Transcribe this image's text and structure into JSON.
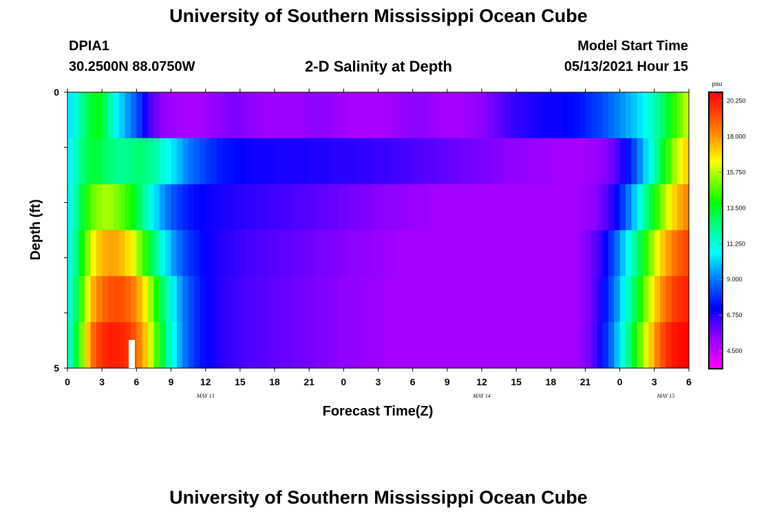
{
  "title": "University of Southern Mississippi Ocean Cube",
  "footer_title": "University of Southern Mississippi Ocean Cube",
  "station": "DPIA1",
  "location": "30.2500N  88.0750W",
  "plot_title": "2-D Salinity at Depth",
  "model_start_label": "Model Start Time",
  "model_start_value": "05/13/2021 Hour 15",
  "chart_data": {
    "type": "heatmap",
    "title": "2-D Salinity at Depth",
    "xlabel": "Forecast Time(Z)",
    "ylabel": "Depth (ft)",
    "units": "psu",
    "x_hours_range": [
      0,
      54
    ],
    "y_range": [
      0,
      5
    ],
    "y_tick_labels": [
      "0",
      "5"
    ],
    "x_tick_labels": [
      "0",
      "3",
      "6",
      "9",
      "12",
      "15",
      "18",
      "21",
      "0",
      "3",
      "6",
      "9",
      "12",
      "15",
      "18",
      "21",
      "0",
      "3",
      "6"
    ],
    "date_labels": [
      {
        "text": "MAY 13",
        "hour": 12
      },
      {
        "text": "MAY 14",
        "hour": 36
      },
      {
        "text": "MAY 15",
        "hour": 52
      }
    ],
    "colorbar": {
      "label": "psu",
      "min": 3.375,
      "max": 20.8,
      "tick_values": [
        "20.250",
        "18.000",
        "15.750",
        "13.500",
        "11.250",
        "9.000",
        "6.750",
        "4.500"
      ]
    },
    "salinity_psu_by_depth_row": [
      [
        10.5,
        11.3,
        12.1,
        12.9,
        13.4,
        13.6,
        12.9,
        11.8,
        10.6,
        10.0,
        9.4,
        8.8,
        8.0,
        7.0,
        6.2,
        5.8,
        5.4,
        5.2,
        5.1,
        5.0,
        4.9,
        4.9,
        4.9,
        5.0,
        5.1,
        5.3,
        5.4,
        5.5,
        5.6,
        5.6,
        5.5,
        5.4,
        5.3,
        5.2,
        5.1,
        5.1,
        5.1,
        5.1,
        5.1,
        5.1,
        5.2,
        5.3,
        5.4,
        5.4,
        5.4,
        5.3,
        5.2,
        5.1,
        5.0,
        4.9,
        4.9,
        4.9,
        4.9,
        4.9,
        4.9,
        5.0,
        5.1,
        5.2,
        5.3,
        5.4,
        5.4,
        5.4,
        5.3,
        5.2,
        5.1,
        5.0,
        5.0,
        5.0,
        5.0,
        5.1,
        5.2,
        5.3,
        5.5,
        5.7,
        5.9,
        6.1,
        6.3,
        6.5,
        6.6,
        6.7,
        6.8,
        6.9,
        7.0,
        7.1,
        7.1,
        7.1,
        7.2,
        7.3,
        7.4,
        7.6,
        7.8,
        8.0,
        8.2,
        8.5,
        8.8,
        9.1,
        9.4,
        9.7,
        10.0,
        10.4,
        10.9,
        11.4,
        12.0,
        12.7,
        13.5,
        14.3,
        15.1,
        15.8
      ],
      [
        10.8,
        11.6,
        12.4,
        13.0,
        13.2,
        13.1,
        12.8,
        12.5,
        12.3,
        12.2,
        12.3,
        12.5,
        12.6,
        12.5,
        12.2,
        11.8,
        11.3,
        10.8,
        10.3,
        9.8,
        9.3,
        8.9,
        8.6,
        8.3,
        8.0,
        7.8,
        7.6,
        7.5,
        7.4,
        7.3,
        7.2,
        7.1,
        7.0,
        7.0,
        7.0,
        7.0,
        6.9,
        6.9,
        6.9,
        6.9,
        6.9,
        6.9,
        6.8,
        6.8,
        6.8,
        6.8,
        6.7,
        6.7,
        6.7,
        6.7,
        6.6,
        6.6,
        6.6,
        6.5,
        6.5,
        6.5,
        6.4,
        6.4,
        6.3,
        6.3,
        6.2,
        6.2,
        6.1,
        6.1,
        6.0,
        6.0,
        5.9,
        5.9,
        5.8,
        5.8,
        5.7,
        5.7,
        5.6,
        5.6,
        5.5,
        5.5,
        5.4,
        5.4,
        5.3,
        5.3,
        5.2,
        5.2,
        5.1,
        5.1,
        5.0,
        5.0,
        5.0,
        5.0,
        5.0,
        5.0,
        5.1,
        5.2,
        5.3,
        5.5,
        5.8,
        6.2,
        6.8,
        7.5,
        8.3,
        9.2,
        10.2,
        11.2,
        12.3,
        13.4,
        14.5,
        15.5,
        16.3,
        17.0
      ],
      [
        11.0,
        12.0,
        13.2,
        14.2,
        15.0,
        15.4,
        15.6,
        15.5,
        15.2,
        14.8,
        14.3,
        13.6,
        12.8,
        11.9,
        11.0,
        10.2,
        9.5,
        8.9,
        8.4,
        8.0,
        7.7,
        7.5,
        7.3,
        7.2,
        7.1,
        7.0,
        6.9,
        6.8,
        6.8,
        6.7,
        6.7,
        6.6,
        6.6,
        6.5,
        6.5,
        6.4,
        6.4,
        6.3,
        6.3,
        6.2,
        6.2,
        6.1,
        6.1,
        6.0,
        6.0,
        5.9,
        5.9,
        5.8,
        5.8,
        5.7,
        5.7,
        5.6,
        5.6,
        5.5,
        5.5,
        5.4,
        5.4,
        5.3,
        5.3,
        5.2,
        5.2,
        5.1,
        5.1,
        5.0,
        5.0,
        5.0,
        5.0,
        5.0,
        5.0,
        5.0,
        5.0,
        5.0,
        5.0,
        5.0,
        5.0,
        5.0,
        5.0,
        5.0,
        5.0,
        5.0,
        5.0,
        5.0,
        5.0,
        5.0,
        5.0,
        5.0,
        5.0,
        5.0,
        5.0,
        5.1,
        5.2,
        5.4,
        5.7,
        6.1,
        6.6,
        7.3,
        8.1,
        9.0,
        10.0,
        11.1,
        12.2,
        13.3,
        14.4,
        15.4,
        16.3,
        17.1,
        17.7,
        18.2
      ],
      [
        11.2,
        12.4,
        13.8,
        15.2,
        16.4,
        17.2,
        17.6,
        17.8,
        17.7,
        17.4,
        16.9,
        16.2,
        15.3,
        14.3,
        13.2,
        12.1,
        11.1,
        10.2,
        9.4,
        8.8,
        8.3,
        7.9,
        7.6,
        7.3,
        7.1,
        6.9,
        6.8,
        6.7,
        6.6,
        6.5,
        6.4,
        6.3,
        6.3,
        6.2,
        6.2,
        6.1,
        6.1,
        6.0,
        6.0,
        5.9,
        5.9,
        5.8,
        5.8,
        5.7,
        5.7,
        5.6,
        5.6,
        5.5,
        5.5,
        5.4,
        5.4,
        5.3,
        5.3,
        5.2,
        5.2,
        5.1,
        5.1,
        5.0,
        5.0,
        5.0,
        5.0,
        5.0,
        5.0,
        5.0,
        5.0,
        5.0,
        5.0,
        5.0,
        5.0,
        5.0,
        5.0,
        5.0,
        5.0,
        5.0,
        5.0,
        5.0,
        5.0,
        5.0,
        5.0,
        5.0,
        5.0,
        5.0,
        5.0,
        5.0,
        5.0,
        5.0,
        5.0,
        5.0,
        5.1,
        5.3,
        5.6,
        6.0,
        6.5,
        7.2,
        8.0,
        8.9,
        9.9,
        10.9,
        12.0,
        13.1,
        14.2,
        15.3,
        16.3,
        17.2,
        18.0,
        18.6,
        19.1,
        19.4
      ],
      [
        11.4,
        12.8,
        14.5,
        16.2,
        17.6,
        18.4,
        18.9,
        19.2,
        19.3,
        19.2,
        18.9,
        18.4,
        17.6,
        16.6,
        15.4,
        14.1,
        12.8,
        11.6,
        10.5,
        9.6,
        8.9,
        8.3,
        7.8,
        7.4,
        7.1,
        6.9,
        6.7,
        6.6,
        6.5,
        6.4,
        6.3,
        6.2,
        6.2,
        6.1,
        6.1,
        6.0,
        6.0,
        5.9,
        5.9,
        5.8,
        5.8,
        5.7,
        5.7,
        5.6,
        5.6,
        5.5,
        5.5,
        5.4,
        5.4,
        5.3,
        5.3,
        5.2,
        5.2,
        5.1,
        5.1,
        5.0,
        5.0,
        5.0,
        5.0,
        5.0,
        5.0,
        5.0,
        5.0,
        5.0,
        5.0,
        5.0,
        5.0,
        5.0,
        5.0,
        5.0,
        5.0,
        5.0,
        5.0,
        5.0,
        5.0,
        5.0,
        5.0,
        5.0,
        5.0,
        5.0,
        5.0,
        5.0,
        5.0,
        5.0,
        5.0,
        5.0,
        5.0,
        5.0,
        5.1,
        5.3,
        5.6,
        6.1,
        6.7,
        7.5,
        8.4,
        9.4,
        10.5,
        11.6,
        12.8,
        14.0,
        15.2,
        16.3,
        17.4,
        18.3,
        19.0,
        19.6,
        19.9,
        20.1
      ],
      [
        11.6,
        13.2,
        15.2,
        17.2,
        18.8,
        19.6,
        20.0,
        20.2,
        20.2,
        20.1,
        19.8,
        19.2,
        18.4,
        17.3,
        16.0,
        14.6,
        13.2,
        11.9,
        10.7,
        9.7,
        8.9,
        8.3,
        7.8,
        7.4,
        7.1,
        6.9,
        6.7,
        6.6,
        6.5,
        6.4,
        6.3,
        6.2,
        6.2,
        6.1,
        6.1,
        6.0,
        6.0,
        5.9,
        5.9,
        5.8,
        5.8,
        5.7,
        5.7,
        5.6,
        5.6,
        5.5,
        5.5,
        5.4,
        5.4,
        5.3,
        5.3,
        5.2,
        5.2,
        5.1,
        5.1,
        5.0,
        5.0,
        5.0,
        5.0,
        5.0,
        5.0,
        5.0,
        5.0,
        5.0,
        5.0,
        5.0,
        5.0,
        5.0,
        5.0,
        5.0,
        5.0,
        5.0,
        5.0,
        5.0,
        5.0,
        5.0,
        5.0,
        5.0,
        5.0,
        5.0,
        5.0,
        5.0,
        5.0,
        5.0,
        5.0,
        5.0,
        5.0,
        5.0,
        5.1,
        5.3,
        5.7,
        6.2,
        6.9,
        7.8,
        8.8,
        9.9,
        11.1,
        12.3,
        13.6,
        14.9,
        16.1,
        17.3,
        18.4,
        19.3,
        20.0,
        20.4,
        20.6,
        20.7
      ]
    ]
  }
}
